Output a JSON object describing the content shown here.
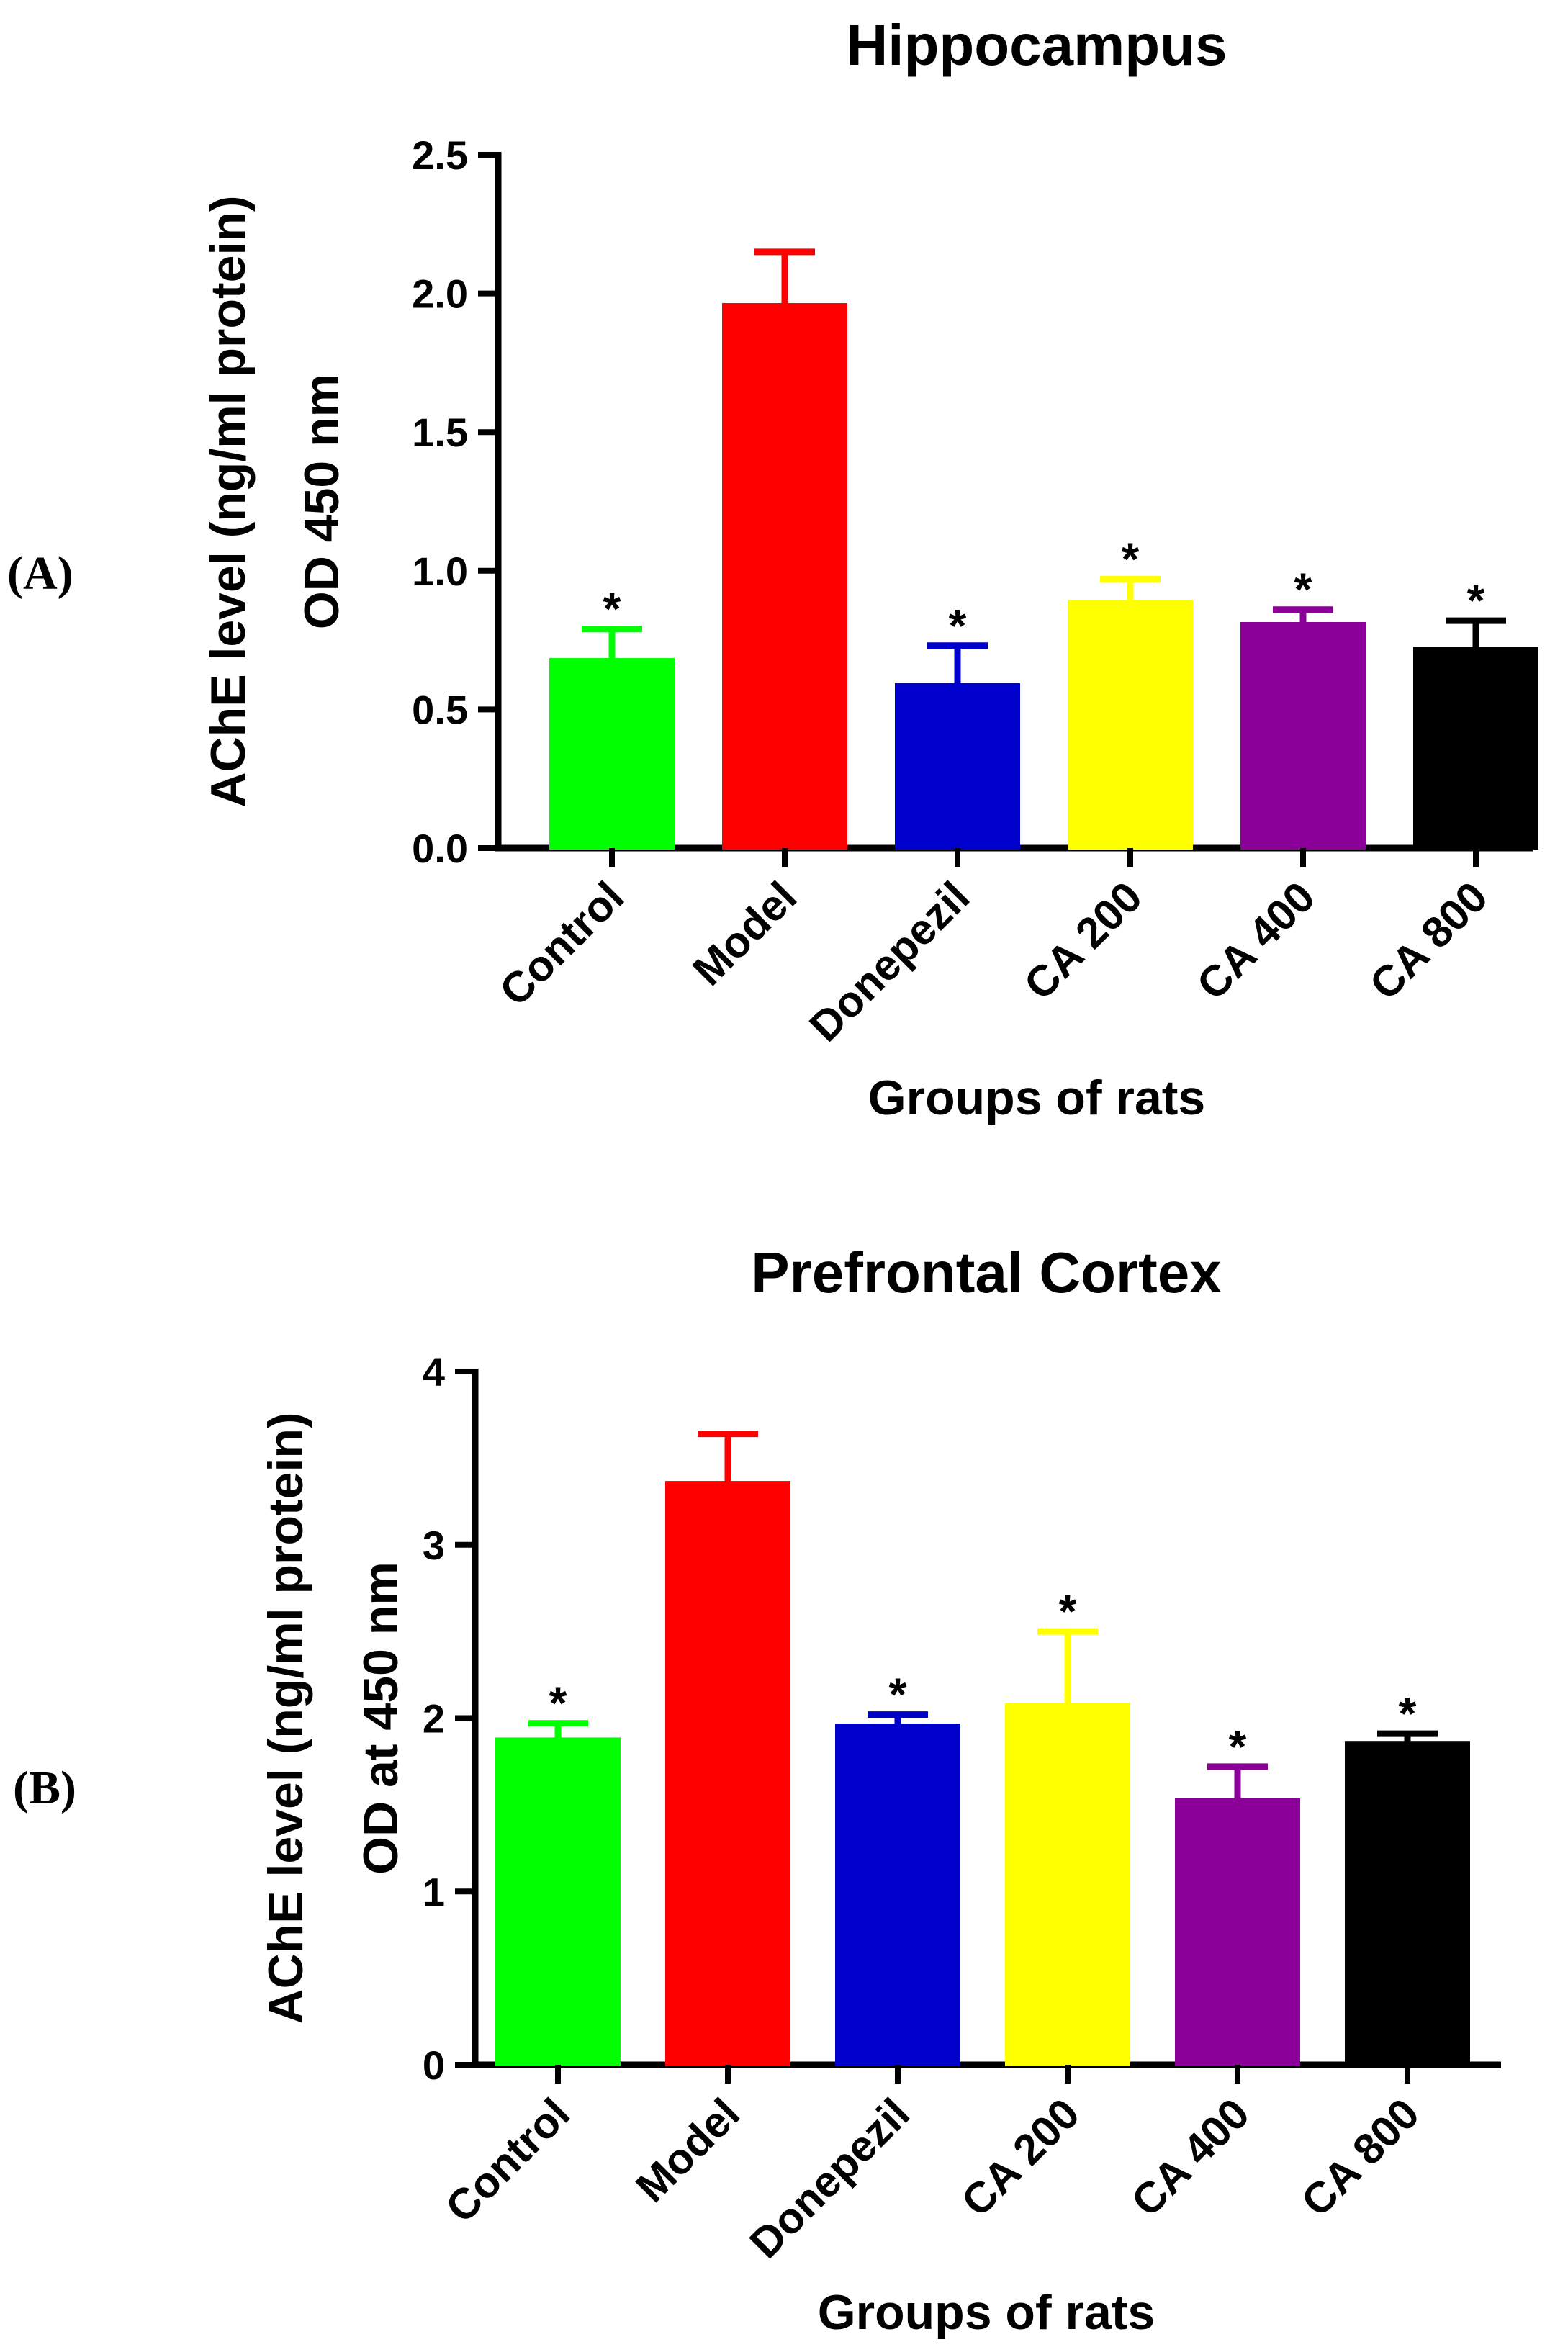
{
  "chart_data": [
    {
      "type": "bar",
      "panel_label": "(A)",
      "title": "Hippocampus",
      "ylabel_line1": "AChE level (ng/ml protein)",
      "ylabel_line2": "OD 450 nm",
      "xlabel": "Groups of rats",
      "ylim": [
        0,
        2.5
      ],
      "yticks": [
        "0.0",
        "0.5",
        "1.0",
        "1.5",
        "2.0",
        "2.5"
      ],
      "categories": [
        "Control",
        "Model",
        "Donepezil",
        "CA 200",
        "CA 400",
        "CA 800"
      ],
      "values": [
        0.68,
        1.96,
        0.59,
        0.89,
        0.81,
        0.72
      ],
      "errors": [
        0.11,
        0.19,
        0.14,
        0.08,
        0.05,
        0.1
      ],
      "significance": [
        "*",
        "",
        "*",
        "*",
        "*",
        "*"
      ],
      "colors": [
        "#00ff00",
        "#ff0000",
        "#0000cc",
        "#ffff00",
        "#8b0099",
        "#000000"
      ],
      "grid": false,
      "legend": "none"
    },
    {
      "type": "bar",
      "panel_label": "(B)",
      "title": "Prefrontal Cortex",
      "ylabel_line1": "AChE level (ng/ml protein)",
      "ylabel_line2": "OD at 450 nm",
      "xlabel": "Groups of rats",
      "ylim": [
        0,
        4
      ],
      "yticks": [
        "0",
        "1",
        "2",
        "3",
        "4"
      ],
      "categories": [
        "Control",
        "Model",
        "Donepezil",
        "CA 200",
        "CA 400",
        "CA 800"
      ],
      "values": [
        1.88,
        3.36,
        1.96,
        2.08,
        1.53,
        1.86
      ],
      "errors": [
        0.09,
        0.28,
        0.06,
        0.42,
        0.19,
        0.05
      ],
      "significance": [
        "*",
        "",
        "*",
        "*",
        "*",
        "*"
      ],
      "colors": [
        "#00ff00",
        "#ff0000",
        "#0000cc",
        "#ffff00",
        "#8b0099",
        "#000000"
      ],
      "grid": false,
      "legend": "none"
    }
  ]
}
